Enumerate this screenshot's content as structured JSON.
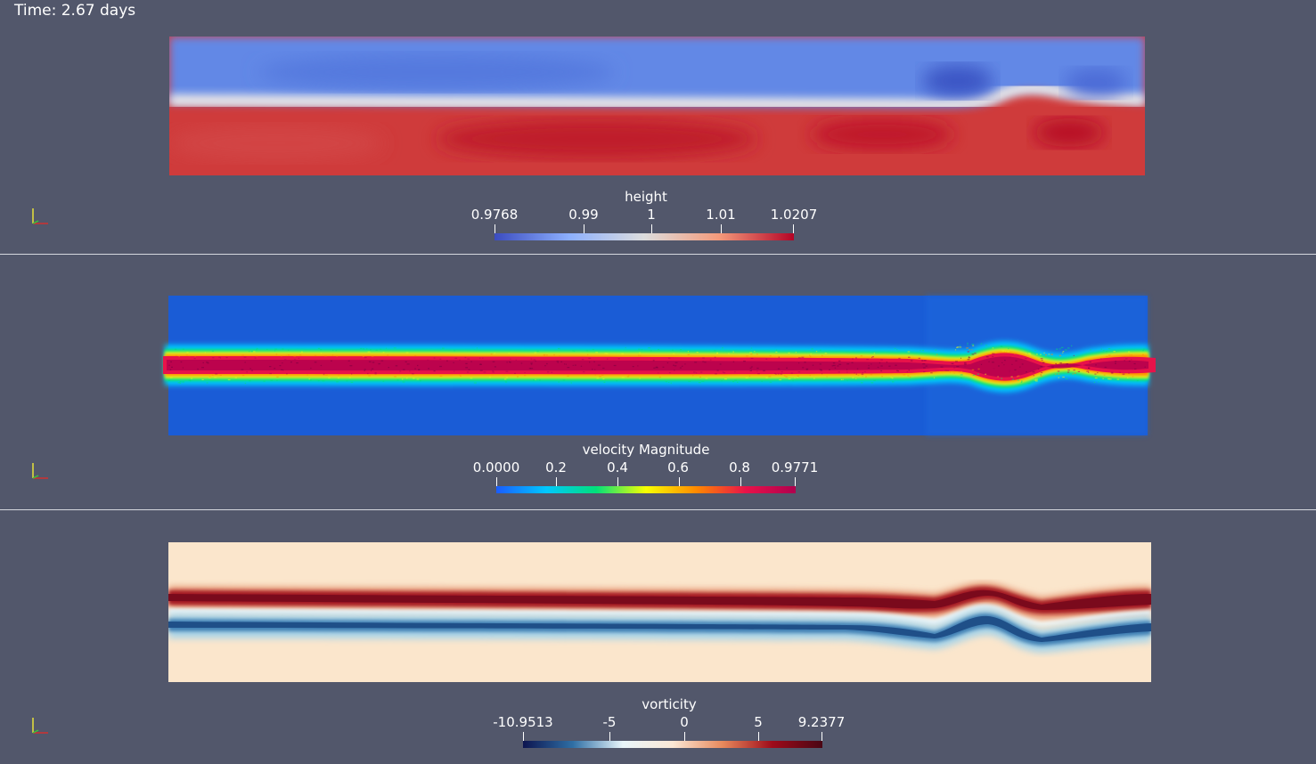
{
  "time_label": "Time: 2.67 days",
  "panels": [
    {
      "id": "height",
      "colorbar": {
        "title": "height",
        "range": [
          0.9768,
          1.0207
        ],
        "tick_labels": [
          "0.9768",
          "0.99",
          "1",
          "1.01",
          "1.0207"
        ],
        "tick_values": [
          0.9768,
          0.99,
          1.0,
          1.01,
          1.0207
        ],
        "colormap": "coolwarm",
        "colors": [
          "#3b4cc0",
          "#8db0fe",
          "#dddddd",
          "#f49a7b",
          "#b40426"
        ]
      }
    },
    {
      "id": "velocity",
      "colorbar": {
        "title": "velocity Magnitude",
        "range": [
          0.0,
          0.9771
        ],
        "tick_labels": [
          "0.0000",
          "0.2",
          "0.4",
          "0.6",
          "0.8",
          "0.9771"
        ],
        "tick_values": [
          0.0,
          0.2,
          0.4,
          0.6,
          0.8,
          0.9771
        ],
        "colormap": "jet-like",
        "colors": [
          "#1a5cff",
          "#00c8ff",
          "#00e07a",
          "#f8ff00",
          "#ff8a00",
          "#e8124a",
          "#b0004e"
        ]
      }
    },
    {
      "id": "vorticity",
      "colorbar": {
        "title": "vorticity",
        "range": [
          -10.9513,
          9.2377
        ],
        "tick_labels": [
          "-10.9513",
          "-5",
          "0",
          "5",
          "9.2377"
        ],
        "tick_values": [
          -10.9513,
          -5,
          0,
          5,
          9.2377
        ],
        "colormap": "RdBu_r",
        "colors": [
          "#0d1550",
          "#2f6fa5",
          "#e9f6fb",
          "#fbe8d6",
          "#e8895c",
          "#9e0b1a",
          "#4a0614"
        ]
      }
    }
  ]
}
